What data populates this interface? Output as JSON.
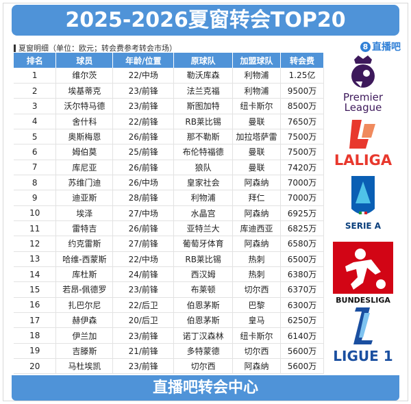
{
  "title": "2025-2026夏窗转会TOP20",
  "subtitle": "夏窗明细（单位：欧元；转会费参考转会市场）",
  "brand": {
    "icon": "8",
    "text": "直播吧"
  },
  "columns": [
    "排名",
    "球员",
    "年龄/位置",
    "原球队",
    "加盟球队",
    "转会费"
  ],
  "rows": [
    [
      "1",
      "维尔茨",
      "22/中场",
      "勒沃库森",
      "利物浦",
      "1.25亿"
    ],
    [
      "2",
      "埃基蒂克",
      "23/前锋",
      "法兰克福",
      "利物浦",
      "9500万"
    ],
    [
      "3",
      "沃尔特马德",
      "23/前锋",
      "斯图加特",
      "纽卡斯尔",
      "8500万"
    ],
    [
      "4",
      "舍什科",
      "22/前锋",
      "RB莱比锡",
      "曼联",
      "7650万"
    ],
    [
      "5",
      "奥斯梅恩",
      "26/前锋",
      "那不勒斯",
      "加拉塔萨雷",
      "7500万"
    ],
    [
      "6",
      "姆伯莫",
      "25/前锋",
      "布伦特福德",
      "曼联",
      "7500万"
    ],
    [
      "7",
      "库尼亚",
      "26/前锋",
      "狼队",
      "曼联",
      "7420万"
    ],
    [
      "8",
      "苏维门迪",
      "26/中场",
      "皇家社会",
      "阿森纳",
      "7000万"
    ],
    [
      "9",
      "迪亚斯",
      "28/前锋",
      "利物浦",
      "拜仁",
      "7000万"
    ],
    [
      "10",
      "埃泽",
      "27/中场",
      "水晶宫",
      "阿森纳",
      "6925万"
    ],
    [
      "11",
      "雷特吉",
      "26/前锋",
      "亚特兰大",
      "库迪西亚",
      "6825万"
    ],
    [
      "12",
      "约克雷斯",
      "27/前锋",
      "葡萄牙体育",
      "阿森纳",
      "6580万"
    ],
    [
      "13",
      "哈维-西蒙斯",
      "22/中场",
      "RB莱比锡",
      "热刺",
      "6500万"
    ],
    [
      "14",
      "库杜斯",
      "24/前锋",
      "西汉姆",
      "热刺",
      "6380万"
    ],
    [
      "15",
      "若昂-佩德罗",
      "23/前锋",
      "布莱顿",
      "切尔西",
      "6370万"
    ],
    [
      "16",
      "扎巴尔尼",
      "22/后卫",
      "伯恩茅斯",
      "巴黎",
      "6300万"
    ],
    [
      "17",
      "赫伊森",
      "20/后卫",
      "伯恩茅斯",
      "皇马",
      "6250万"
    ],
    [
      "18",
      "伊兰加",
      "23/前锋",
      "诺丁汉森林",
      "纽卡斯尔",
      "6140万"
    ],
    [
      "19",
      "吉滕斯",
      "21/前锋",
      "多特蒙德",
      "切尔西",
      "5600万"
    ],
    [
      "20",
      "马杜埃凯",
      "23/前锋",
      "切尔西",
      "阿森纳",
      "5600万"
    ]
  ],
  "leagues": [
    {
      "name": "premier-league",
      "text1": "Premier",
      "text2": "League",
      "color": "#3d195b"
    },
    {
      "name": "laliga",
      "text1": "LALIGA",
      "color": "#e8382d"
    },
    {
      "name": "serie-a",
      "text1": "SERIE A",
      "color": "#0a5fb4"
    },
    {
      "name": "bundesliga",
      "text1": "BUNDESLIGA",
      "color": "#d20515"
    },
    {
      "name": "ligue-1",
      "text1": "LIGUE 1",
      "color": "#1a4fa0"
    }
  ],
  "footer": "直播吧转会中心",
  "colors": {
    "accent": "#4f93d8"
  }
}
